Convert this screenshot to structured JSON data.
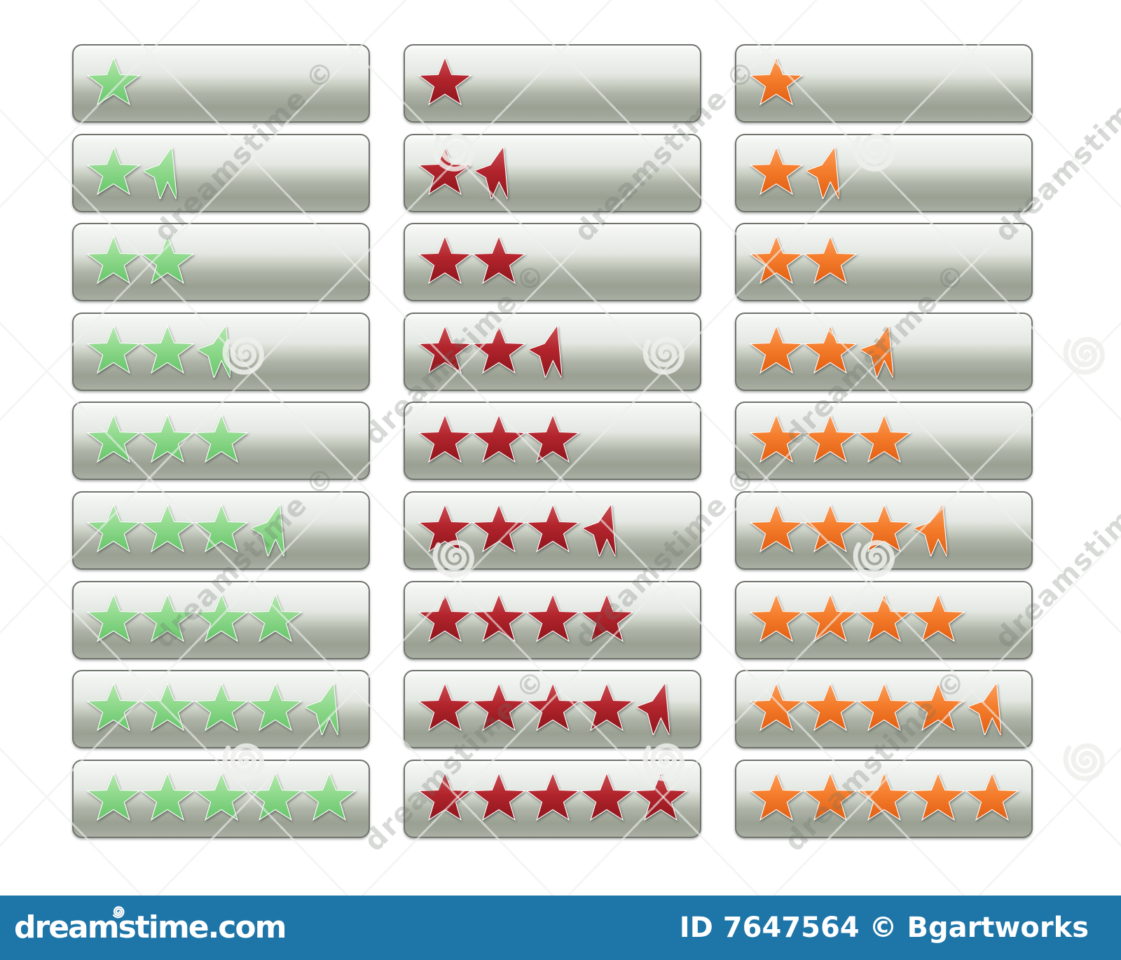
{
  "page": {
    "background": "#ffffff"
  },
  "watermark": {
    "brand": "dreamstime",
    "copyright_symbol": "©",
    "tile_text": "dreamstime ©",
    "spiral_color": "#eef0ec"
  },
  "footer_bar": {
    "background": "#1e75a8",
    "site": "dreamstime.com",
    "credit": "ID 7647564 © Bgartworks"
  },
  "buttons": {
    "ratings": [
      1,
      1.5,
      2,
      2.5,
      3,
      3.5,
      4,
      4.5,
      5
    ],
    "columns": [
      {
        "name": "green",
        "gradient": [
          "#b4e8ae",
          "#8fd98c",
          "#68c56b"
        ]
      },
      {
        "name": "red",
        "gradient": [
          "#c94f54",
          "#b2242c",
          "#8f161d"
        ]
      },
      {
        "name": "orange",
        "gradient": [
          "#fb9d5c",
          "#f47d2c",
          "#e25f13"
        ]
      }
    ],
    "surface": {
      "border": "#6f746d",
      "top": "#fbfcfb",
      "upper": "#e4e8e3",
      "mid": "#ccd1c6",
      "lower": "#9aa193",
      "bottom": "#aab0a3"
    }
  }
}
